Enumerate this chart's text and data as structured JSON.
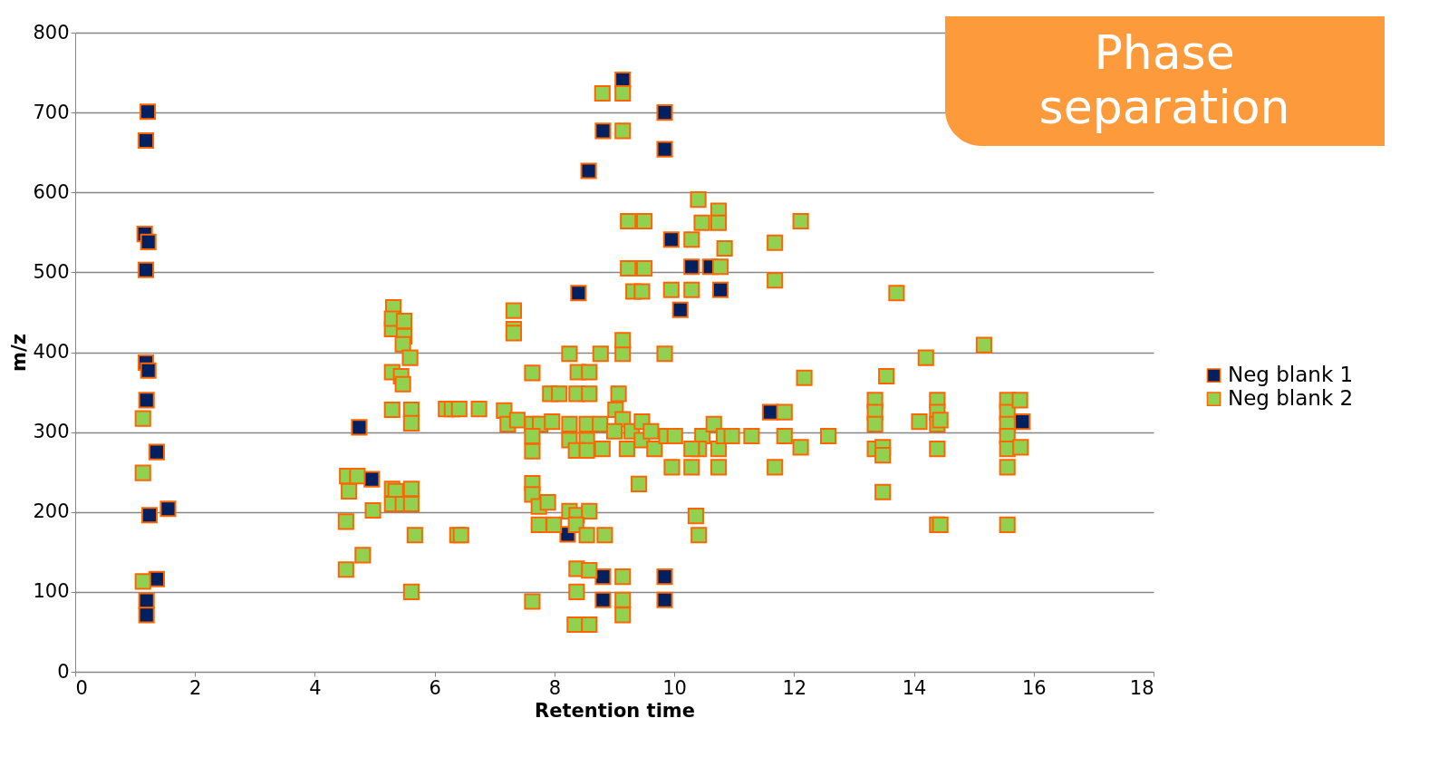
{
  "chart_data": {
    "type": "scatter",
    "xlabel": "Retention time",
    "ylabel": "m/z",
    "xlim": [
      0,
      18
    ],
    "xticks": [
      0,
      2,
      4,
      6,
      8,
      10,
      12,
      14,
      16,
      18
    ],
    "ylim": [
      0,
      800
    ],
    "yticks": [
      0,
      100,
      200,
      300,
      400,
      500,
      600,
      700,
      800
    ],
    "grid": "y",
    "legend": "right",
    "marker": "square",
    "annotations": [
      "Phase separation"
    ],
    "series": [
      {
        "name": "Neg blank 1",
        "color": "#002060",
        "x": [
          1.21,
          1.18,
          1.16,
          1.22,
          1.18,
          1.18,
          1.22,
          1.19,
          1.36,
          1.55,
          1.24,
          1.36,
          1.19,
          1.19,
          4.74,
          4.95,
          9.14,
          8.81,
          9.84,
          9.84,
          8.57,
          9.95,
          10.29,
          10.6,
          10.77,
          10.1,
          8.4,
          8.22,
          8.81,
          8.81,
          9.84,
          9.84,
          11.6,
          15.81
        ],
        "values": [
          701,
          665,
          548,
          538,
          503,
          387,
          377,
          340,
          275,
          204,
          196,
          116,
          89,
          71,
          306,
          241,
          741,
          677,
          700,
          654,
          627,
          541,
          507,
          507,
          478,
          453,
          474,
          172,
          119,
          90,
          119,
          90,
          325,
          313
        ]
      },
      {
        "name": "Neg blank 2",
        "color": "#92d050",
        "x": [
          1.13,
          1.13,
          1.13,
          4.52,
          4.52,
          4.8,
          4.54,
          4.57,
          4.71,
          4.97,
          5.31,
          5.29,
          5.29,
          5.49,
          5.49,
          5.47,
          5.59,
          5.29,
          5.44,
          5.47,
          5.29,
          5.61,
          5.61,
          5.29,
          5.35,
          5.29,
          5.47,
          5.61,
          5.61,
          5.67,
          5.61,
          6.19,
          6.29,
          6.41,
          6.74,
          6.38,
          6.44,
          7.32,
          7.32,
          7.32,
          7.63,
          7.16,
          7.22,
          7.38,
          7.63,
          7.76,
          7.63,
          7.63,
          7.96,
          7.93,
          8.08,
          7.63,
          7.63,
          7.74,
          7.89,
          7.74,
          7.99,
          7.63,
          8.25,
          8.39,
          8.58,
          8.37,
          8.58,
          8.25,
          8.54,
          8.76,
          8.25,
          8.54,
          8.36,
          8.54,
          8.8,
          8.25,
          8.37,
          8.58,
          8.36,
          8.54,
          8.84,
          8.37,
          8.58,
          8.37,
          8.34,
          8.58,
          8.8,
          9.14,
          9.14,
          8.77,
          9.14,
          9.14,
          9.84,
          9.07,
          9.02,
          9.14,
          9.0,
          9.29,
          9.23,
          9.5,
          9.23,
          9.5,
          9.32,
          9.46,
          9.21,
          9.46,
          9.41,
          9.46,
          9.61,
          9.67,
          9.87,
          10.01,
          9.14,
          9.14,
          9.14,
          9.95,
          9.96,
          10.29,
          10.29,
          10.4,
          10.46,
          10.74,
          10.74,
          10.84,
          10.77,
          10.47,
          10.29,
          10.41,
          10.66,
          10.74,
          10.74,
          10.83,
          10.96,
          11.29,
          10.36,
          10.41,
          10.29,
          11.68,
          11.68,
          11.84,
          11.84,
          11.68,
          12.11,
          12.17,
          12.11,
          12.57,
          13.35,
          13.35,
          13.35,
          13.35,
          13.48,
          13.48,
          13.54,
          13.48,
          13.71,
          14.2,
          14.09,
          14.39,
          14.39,
          14.39,
          14.44,
          14.39,
          14.39,
          14.44,
          15.17,
          15.56,
          15.56,
          15.56,
          15.56,
          15.56,
          15.56,
          15.56,
          15.77,
          15.78
        ],
        "values": [
          317,
          249,
          113,
          188,
          128,
          146,
          245,
          226,
          245,
          202,
          456,
          429,
          442,
          439,
          420,
          410,
          393,
          375,
          370,
          360,
          328,
          328,
          311,
          229,
          226,
          210,
          210,
          229,
          210,
          171,
          100,
          329,
          329,
          329,
          329,
          171,
          171,
          452,
          429,
          424,
          374,
          327,
          310,
          315,
          310,
          310,
          295,
          276,
          313,
          348,
          348,
          236,
          222,
          207,
          212,
          184,
          184,
          88,
          398,
          375,
          375,
          348,
          348,
          310,
          310,
          310,
          290,
          290,
          277,
          277,
          279,
          201,
          196,
          201,
          184,
          171,
          171,
          129,
          127,
          100,
          59,
          59,
          724,
          724,
          677,
          398,
          398,
          415,
          398,
          348,
          328,
          316,
          301,
          301,
          564,
          564,
          505,
          505,
          476,
          476,
          279,
          290,
          235,
          313,
          301,
          279,
          295,
          295,
          119,
          90,
          71,
          478,
          256,
          541,
          478,
          591,
          562,
          577,
          562,
          530,
          507,
          295,
          256,
          279,
          310,
          279,
          256,
          295,
          295,
          295,
          195,
          171,
          279,
          537,
          490,
          325,
          295,
          256,
          564,
          368,
          281,
          295,
          340,
          325,
          310,
          279,
          281,
          271,
          370,
          225,
          474,
          393,
          313,
          340,
          325,
          310,
          315,
          279,
          184,
          184,
          409,
          340,
          325,
          310,
          295,
          279,
          256,
          184,
          340,
          281
        ]
      }
    ]
  }
}
